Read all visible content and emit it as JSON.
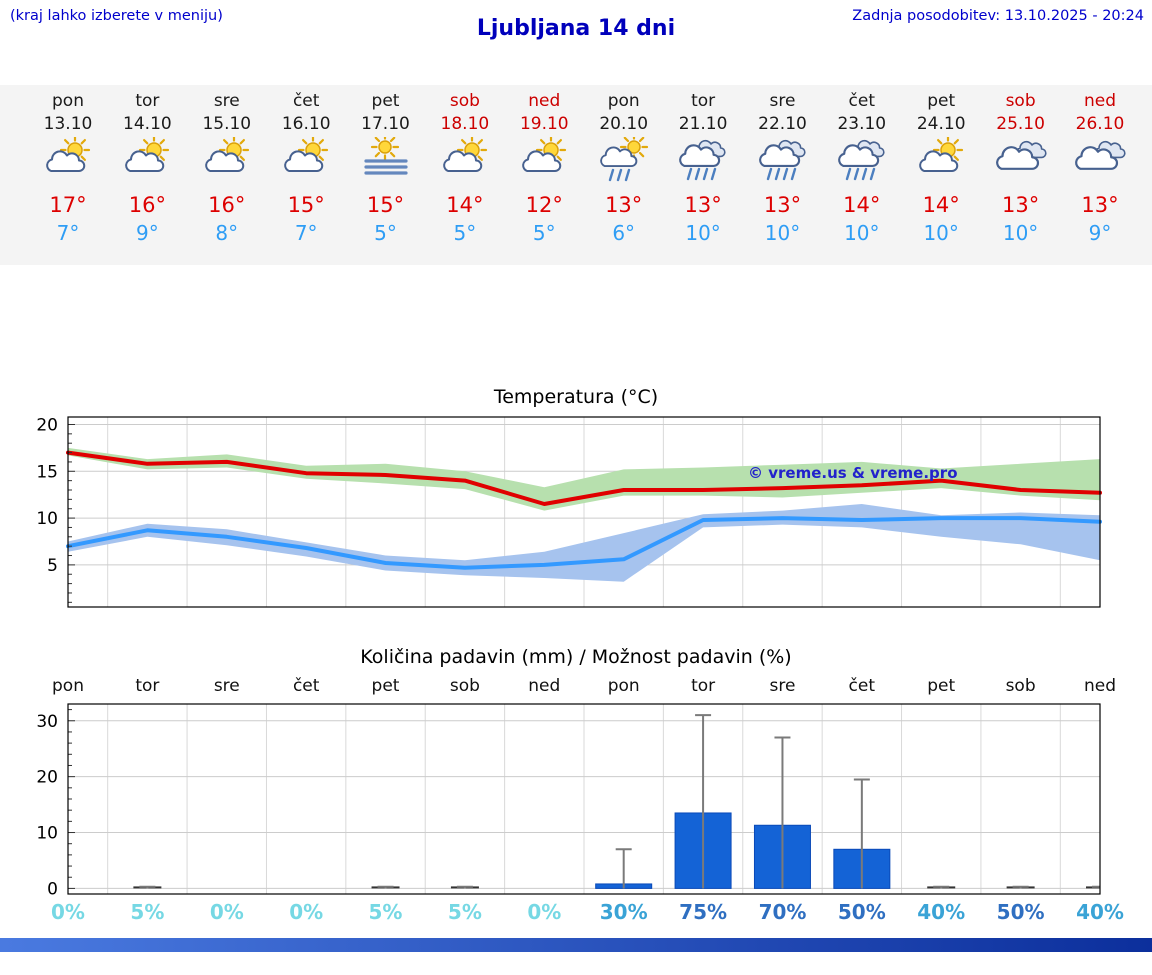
{
  "header": {
    "note": "(kraj lahko izberete v meniju)",
    "title": "Ljubljana 14 dni",
    "updated": "Zadnja posodobitev: 13.10.2025 - 20:24"
  },
  "colors": {
    "header_blue": "#0000cc",
    "weekend_red": "#cc0000",
    "tmax_red": "#dd0000",
    "tmin_blue": "#2e9df5",
    "line_red": "#e00000",
    "line_blue": "#3399ff",
    "band_green": "#b7e0ae",
    "band_blue": "#a6c3ee",
    "bar_blue": "#1463d6",
    "bar_stroke": "#0a4ab8",
    "whisker_gray": "#7a7a7a",
    "prob_low": "#76d8e4",
    "prob_mid": "#3aa3d6",
    "prob_high": "#2f6fc1"
  },
  "days": [
    {
      "name": "pon",
      "date": "13.10",
      "weekend": false,
      "icon": "partly-cloudy",
      "tmax": "17°",
      "tmin": "7°"
    },
    {
      "name": "tor",
      "date": "14.10",
      "weekend": false,
      "icon": "partly-cloudy",
      "tmax": "16°",
      "tmin": "9°"
    },
    {
      "name": "sre",
      "date": "15.10",
      "weekend": false,
      "icon": "partly-cloudy",
      "tmax": "16°",
      "tmin": "8°"
    },
    {
      "name": "čet",
      "date": "16.10",
      "weekend": false,
      "icon": "partly-cloudy",
      "tmax": "15°",
      "tmin": "7°"
    },
    {
      "name": "pet",
      "date": "17.10",
      "weekend": false,
      "icon": "fog",
      "tmax": "15°",
      "tmin": "5°"
    },
    {
      "name": "sob",
      "date": "18.10",
      "weekend": true,
      "icon": "partly-cloudy",
      "tmax": "14°",
      "tmin": "5°"
    },
    {
      "name": "ned",
      "date": "19.10",
      "weekend": true,
      "icon": "partly-cloudy",
      "tmax": "12°",
      "tmin": "5°"
    },
    {
      "name": "pon",
      "date": "20.10",
      "weekend": false,
      "icon": "sun-shower",
      "tmax": "13°",
      "tmin": "6°"
    },
    {
      "name": "tor",
      "date": "21.10",
      "weekend": false,
      "icon": "rain",
      "tmax": "13°",
      "tmin": "10°"
    },
    {
      "name": "sre",
      "date": "22.10",
      "weekend": false,
      "icon": "rain",
      "tmax": "13°",
      "tmin": "10°"
    },
    {
      "name": "čet",
      "date": "23.10",
      "weekend": false,
      "icon": "rain",
      "tmax": "14°",
      "tmin": "10°"
    },
    {
      "name": "pet",
      "date": "24.10",
      "weekend": false,
      "icon": "partly-cloudy",
      "tmax": "14°",
      "tmin": "10°"
    },
    {
      "name": "sob",
      "date": "25.10",
      "weekend": true,
      "icon": "cloudy",
      "tmax": "13°",
      "tmin": "10°"
    },
    {
      "name": "ned",
      "date": "26.10",
      "weekend": true,
      "icon": "cloudy",
      "tmax": "13°",
      "tmin": "9°"
    }
  ],
  "chart_data": [
    {
      "type": "line",
      "title": "Temperatura (°C)",
      "watermark": "© vreme.us & vreme.pro",
      "x_labels": [
        "pon",
        "tor",
        "sre",
        "čet",
        "pet",
        "sob",
        "ned",
        "pon",
        "tor",
        "sre",
        "čet",
        "pet",
        "sob",
        "ned"
      ],
      "ylim": [
        0.5,
        20.8
      ],
      "yticks": [
        5,
        10,
        15,
        20
      ],
      "grid": true,
      "series": [
        {
          "name": "temp-max",
          "color": "#e00000",
          "values": [
            17,
            15.8,
            16,
            14.8,
            14.6,
            14,
            11.5,
            13,
            13,
            13.2,
            13.5,
            14,
            13,
            12.7
          ]
        },
        {
          "name": "temp-min",
          "color": "#3399ff",
          "values": [
            7,
            8.7,
            8,
            6.8,
            5.2,
            4.7,
            5,
            5.6,
            9.8,
            10,
            9.8,
            10,
            10,
            9.6
          ]
        }
      ],
      "bands": [
        {
          "name": "temp-max-range",
          "color": "#b7e0ae",
          "upper": [
            17.5,
            16.3,
            16.8,
            15.6,
            15.8,
            15,
            13.3,
            15.2,
            15.4,
            15.7,
            16,
            15.3,
            15.8,
            16.3
          ],
          "lower": [
            16.7,
            15.2,
            15.4,
            14.2,
            13.7,
            13.1,
            10.8,
            12.4,
            12.4,
            12.2,
            12.7,
            13.2,
            12.4,
            11.9
          ]
        },
        {
          "name": "temp-min-range",
          "color": "#a6c3ee",
          "upper": [
            7.5,
            9.4,
            8.8,
            7.4,
            6,
            5.5,
            6.4,
            8.4,
            10.4,
            10.8,
            11.5,
            10.3,
            10.6,
            10.3
          ],
          "lower": [
            6.4,
            8,
            7.1,
            5.9,
            4.4,
            3.9,
            3.6,
            3.2,
            9,
            9.3,
            9,
            8,
            7.2,
            5.5
          ]
        }
      ]
    },
    {
      "type": "bar",
      "title": "Količina padavin (mm) / Možnost padavin (%)",
      "categories": [
        "pon",
        "tor",
        "sre",
        "čet",
        "pet",
        "sob",
        "ned",
        "pon",
        "tor",
        "sre",
        "čet",
        "pet",
        "sob",
        "ned"
      ],
      "values": [
        0,
        0.1,
        0,
        0,
        0.1,
        0.1,
        0,
        0.8,
        13.5,
        11.3,
        7,
        0.1,
        0.1,
        0.1
      ],
      "whisker_max": [
        0,
        0.3,
        0,
        0,
        0.3,
        0.3,
        0,
        7,
        31,
        27,
        19.5,
        0.3,
        0.3,
        0.3
      ],
      "probabilities": [
        "0%",
        "5%",
        "0%",
        "0%",
        "5%",
        "5%",
        "0%",
        "30%",
        "75%",
        "70%",
        "50%",
        "40%",
        "50%",
        "40%"
      ],
      "ylim": [
        -1,
        33
      ],
      "yticks": [
        0,
        10,
        20,
        30
      ],
      "grid": true
    }
  ]
}
